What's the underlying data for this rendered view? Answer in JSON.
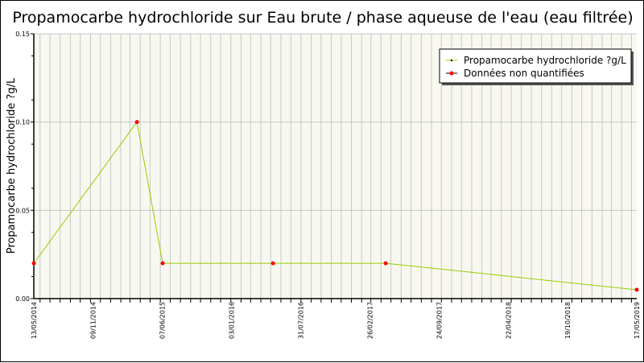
{
  "chart_data": {
    "type": "line",
    "title": "Propamocarbe hydrochloride sur Eau brute / phase aqueuse de l'eau (eau filtrée)",
    "xlabel": "",
    "ylabel": "Propamocarbe hydrochloride ?g/L",
    "xlim": [
      "2014-05-13",
      "2019-05-17"
    ],
    "ylim": [
      0,
      0.15
    ],
    "y_ticks": [
      "0.00",
      "0.05",
      "0.10",
      "0.15"
    ],
    "x_tick_labels": [
      "13/05/2014",
      "09/11/2014",
      "07/06/2015",
      "03/01/2016",
      "31/07/2016",
      "26/02/2017",
      "24/09/2017",
      "22/04/2018",
      "19/10/2018",
      "17/05/2019"
    ],
    "x_tick_dates": [
      "2014-05-13",
      "2014-11-09",
      "2015-06-07",
      "2016-01-03",
      "2016-07-31",
      "2017-02-26",
      "2017-09-24",
      "2018-04-22",
      "2018-10-19",
      "2019-05-17"
    ],
    "grid": true,
    "legend_position": "top-right",
    "series": [
      {
        "name": "Propamocarbe hydrochloride ?g/L",
        "color": "#99cc00",
        "x": [
          "2014-05-13",
          "2015-03-22",
          "2015-06-08",
          "2016-05-08",
          "2017-04-15",
          "2019-05-17"
        ],
        "y": [
          0.02,
          0.1,
          0.02,
          0.02,
          0.02,
          0.005
        ]
      }
    ],
    "non_quantified": {
      "name": "Données non quantifiées",
      "color": "#ff0000",
      "x": [
        "2014-05-13",
        "2015-03-22",
        "2015-06-08",
        "2016-05-08",
        "2017-04-15",
        "2019-05-17"
      ],
      "y": [
        0.02,
        0.1,
        0.02,
        0.02,
        0.02,
        0.005
      ]
    },
    "colors": {
      "plot_bg": "#f8f8f0",
      "grid": "#c8c8c8"
    }
  }
}
